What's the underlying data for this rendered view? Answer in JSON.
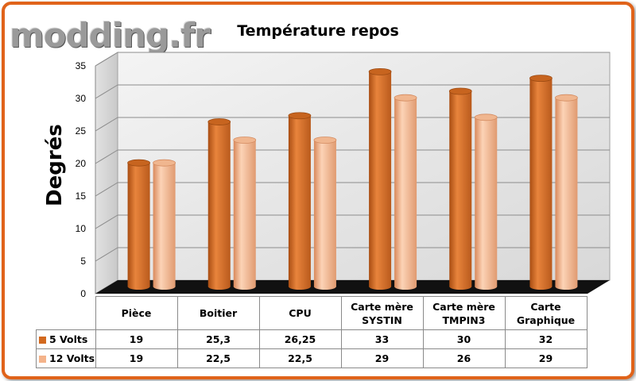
{
  "watermark": {
    "logo_text": "modding.fr"
  },
  "colors": {
    "frame": "#e0631a",
    "series_5v": "#d2691e",
    "series_12v": "#f4b38a"
  },
  "chart_data": {
    "type": "bar",
    "title": "Température repos",
    "ylabel": "Degrés",
    "xlabel": "",
    "ylim": [
      0,
      35
    ],
    "yticks": [
      0,
      5,
      10,
      15,
      20,
      25,
      30,
      35
    ],
    "categories": [
      "Pièce",
      "Boitier",
      "CPU",
      "Carte mère SYSTIN",
      "Carte mère TMPIN3",
      "Carte Graphique"
    ],
    "category_lines": [
      [
        "Pièce"
      ],
      [
        "Boitier"
      ],
      [
        "CPU"
      ],
      [
        "Carte mère",
        "SYSTIN"
      ],
      [
        "Carte mère",
        "TMPIN3"
      ],
      [
        "Carte",
        "Graphique"
      ]
    ],
    "series": [
      {
        "name": "5 Volts",
        "values": [
          19,
          25.3,
          26.25,
          33,
          30,
          32
        ],
        "labels": [
          "19",
          "25,3",
          "26,25",
          "33",
          "30",
          "32"
        ]
      },
      {
        "name": "12 Volts",
        "values": [
          19,
          22.5,
          22.5,
          29,
          26,
          29
        ],
        "labels": [
          "19",
          "22,5",
          "22,5",
          "29",
          "26",
          "29"
        ]
      }
    ],
    "grid": true,
    "legend": "table"
  }
}
